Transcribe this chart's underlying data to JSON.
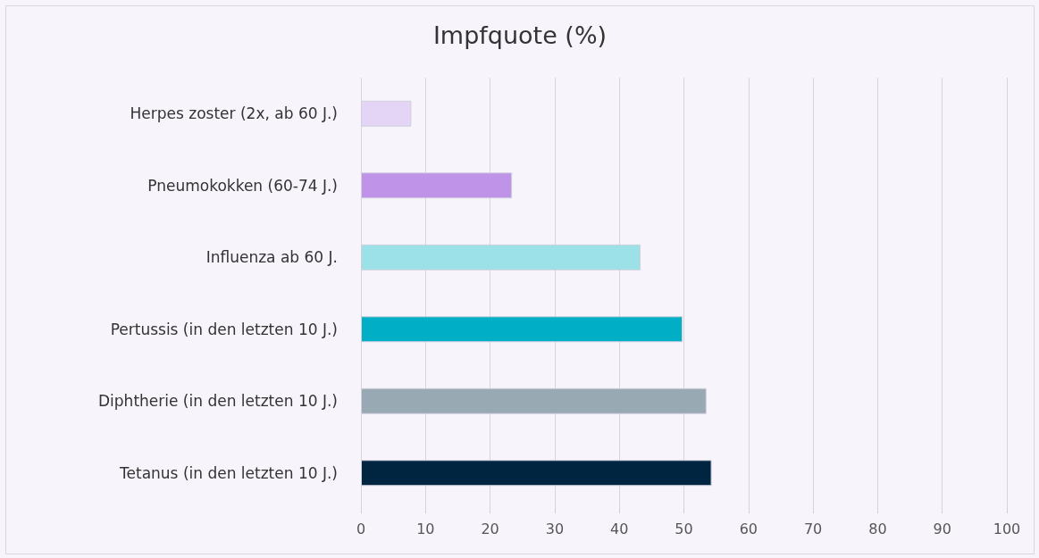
{
  "chart_data": {
    "type": "bar",
    "orientation": "horizontal",
    "title": "Impfquote (%)",
    "categories": [
      "Herpes zoster (2x, ab 60 J.)",
      "Pneumokokken (60-74 J.)",
      "Influenza ab 60 J.",
      "Pertussis (in den letzten 10 J.)",
      "Diphtherie (in den letzten 10 J.)",
      "Tetanus (in den letzten 10 J.)"
    ],
    "values": [
      7.8,
      23.4,
      43.3,
      49.8,
      53.5,
      54.3
    ],
    "colors": [
      "#e4d4f6",
      "#be93e8",
      "#9ce0e8",
      "#00aec6",
      "#99a9b3",
      "#002540"
    ],
    "xlim": [
      0,
      100
    ],
    "xticks": [
      0,
      10,
      20,
      30,
      40,
      50,
      60,
      70,
      80,
      90,
      100
    ],
    "grid": "x"
  }
}
